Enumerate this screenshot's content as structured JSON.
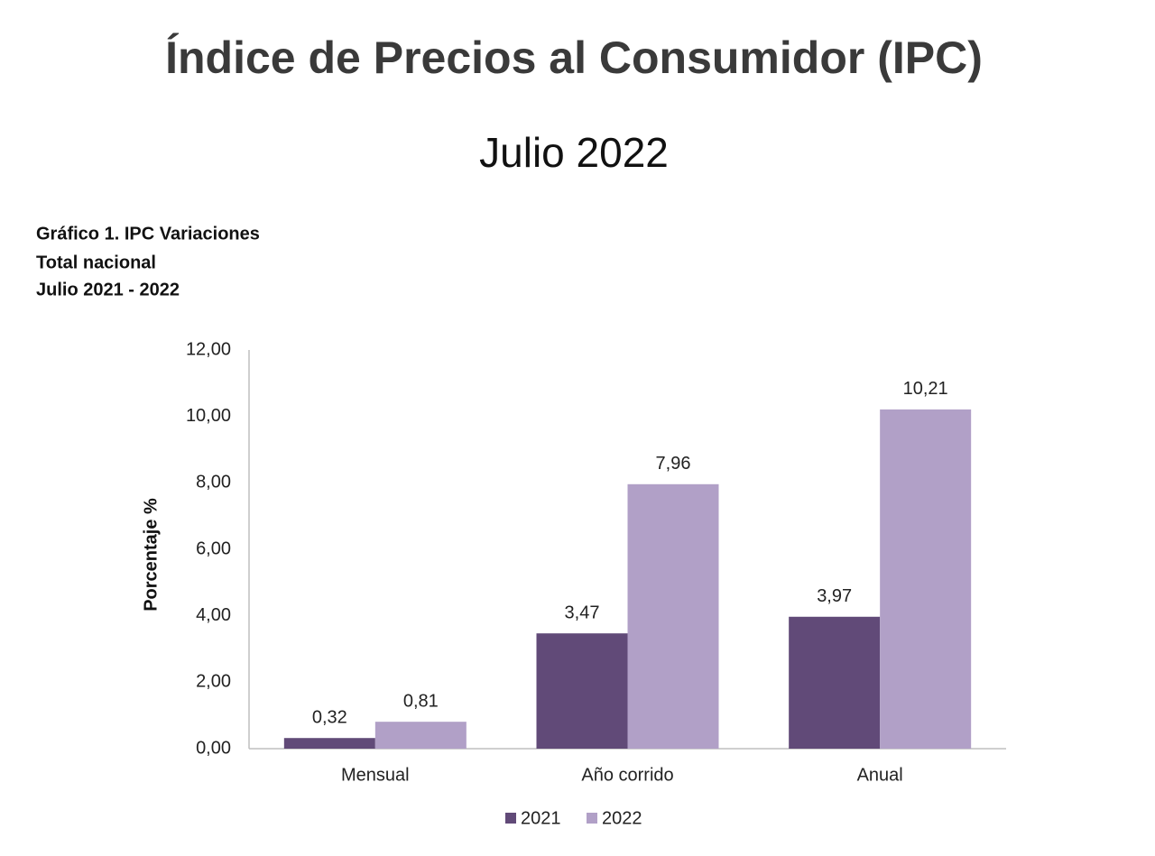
{
  "chart_data": {
    "type": "bar",
    "title": "Índice de Precios al Consumidor (IPC)",
    "subtitle": "Julio 2022",
    "caption": [
      "Gráfico 1. IPC Variaciones",
      "Total nacional",
      "Julio 2021 - 2022"
    ],
    "y_label": "Porcentaje %",
    "categories": [
      "Mensual",
      "Año corrido",
      "Anual"
    ],
    "series": [
      {
        "name": "2021",
        "color": "#614a78",
        "values": [
          0.32,
          3.47,
          3.97
        ],
        "value_labels": [
          "0,32",
          "3,47",
          "3,97"
        ]
      },
      {
        "name": "2022",
        "color": "#b1a0c7",
        "values": [
          0.81,
          7.96,
          10.21
        ],
        "value_labels": [
          "0,81",
          "7,96",
          "10,21"
        ]
      }
    ],
    "ylim": [
      0,
      12
    ],
    "yticks": [
      {
        "value": 0,
        "label": "0,00"
      },
      {
        "value": 2,
        "label": "2,00"
      },
      {
        "value": 4,
        "label": "4,00"
      },
      {
        "value": 6,
        "label": "6,00"
      },
      {
        "value": 8,
        "label": "8,00"
      },
      {
        "value": 10,
        "label": "10,00"
      },
      {
        "value": 12,
        "label": "12,00"
      }
    ],
    "grid": false,
    "legend": "bottom"
  }
}
